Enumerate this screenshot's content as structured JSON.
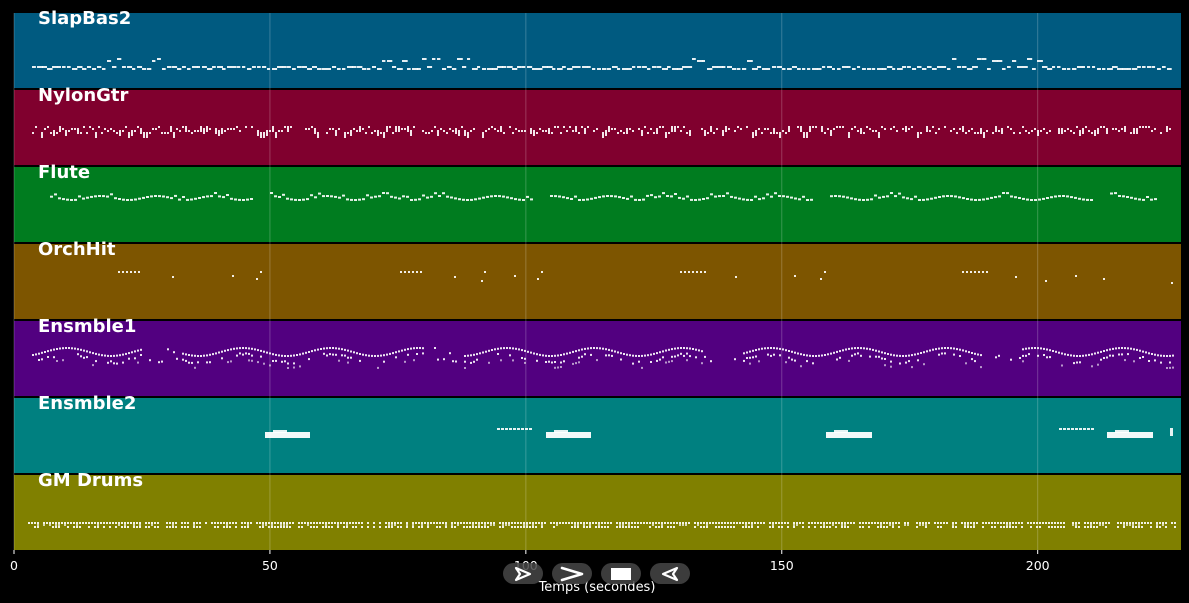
{
  "window": {
    "background": "#000000"
  },
  "tracks": [
    {
      "name": "SlapBas2",
      "color": "#005a80",
      "pattern": "bass"
    },
    {
      "name": "NylonGtr",
      "color": "#80002e",
      "pattern": "dense"
    },
    {
      "name": "Flute",
      "color": "#007c1f",
      "pattern": "melody"
    },
    {
      "name": "OrchHit",
      "color": "#7d5500",
      "pattern": "hits"
    },
    {
      "name": "Ensmble1",
      "color": "#520080",
      "pattern": "ensemble"
    },
    {
      "name": "Ensmble2",
      "color": "#008080",
      "pattern": "pads"
    },
    {
      "name": "GM Drums",
      "color": "#808000",
      "pattern": "drums"
    }
  ],
  "time_axis": {
    "label": "Temps (secondes)",
    "min": 0,
    "max": 228,
    "ticks": [
      0,
      50,
      100,
      150,
      200
    ],
    "tick_labels": [
      "0",
      "50",
      "100",
      "150",
      "200"
    ],
    "grid": true
  },
  "transport": {
    "buttons": [
      {
        "id": "play",
        "icon": "play-outline-icon"
      },
      {
        "id": "forward",
        "icon": "chevron-right-icon"
      },
      {
        "id": "stop",
        "icon": "stop-square-icon"
      },
      {
        "id": "rewind",
        "icon": "rewind-left-icon"
      }
    ]
  }
}
